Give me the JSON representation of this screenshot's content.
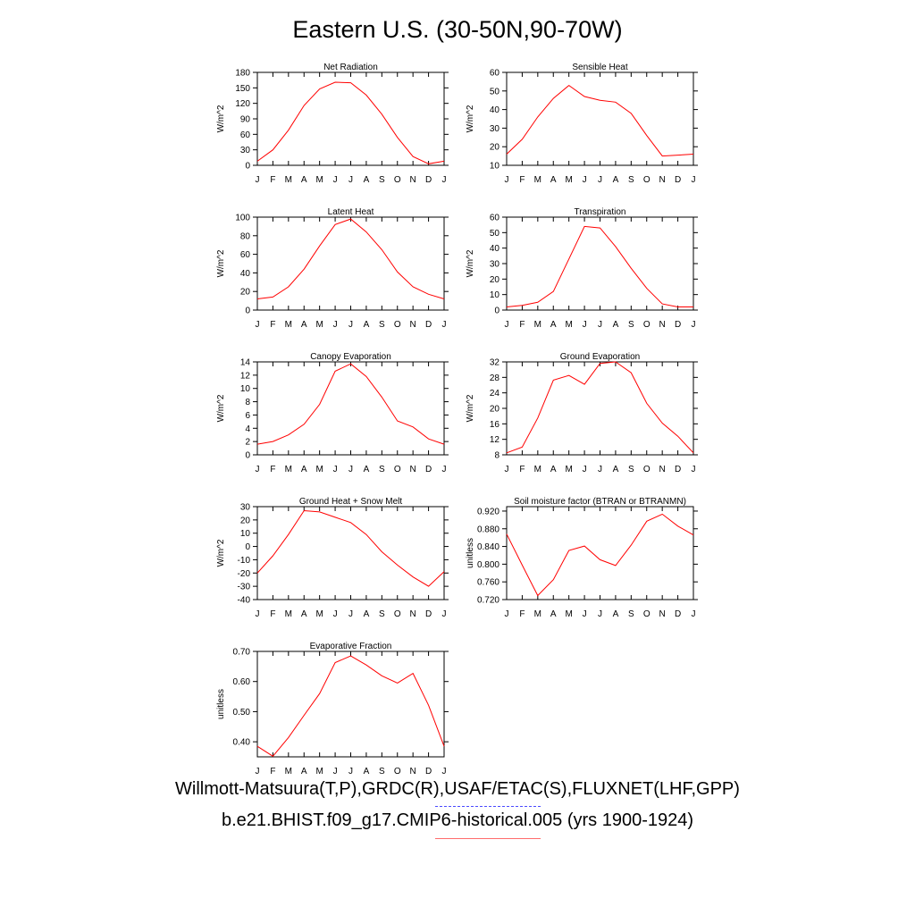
{
  "title": "Eastern U.S. (30-50N,90-70W)",
  "colors": {
    "series": "#ff0000",
    "obs": "#4a4aff",
    "model": "#ff6b6b"
  },
  "legend": {
    "obs_label": "Willmott-Matsuura(T,P),GRDC(R),USAF/ETAC(S),FLUXNET(LHF,GPP)",
    "model_label": "b.e21.BHIST.f09_g17.CMIP6-historical.005 (yrs 1900-1924)"
  },
  "months": [
    "J",
    "F",
    "M",
    "A",
    "M",
    "J",
    "J",
    "A",
    "S",
    "O",
    "N",
    "D",
    "J"
  ],
  "chart_data": [
    {
      "type": "line",
      "title": "Net Radiation",
      "ylabel": "W/m^2",
      "ylim": [
        0,
        180
      ],
      "yticks": [
        "0",
        "30",
        "60",
        "90",
        "120",
        "150",
        "180"
      ],
      "values": [
        8,
        30,
        68,
        116,
        148,
        161,
        160,
        136,
        99,
        54,
        17,
        3,
        8
      ]
    },
    {
      "type": "line",
      "title": "Sensible Heat",
      "ylabel": "W/m^2",
      "ylim": [
        10,
        60
      ],
      "yticks": [
        "10",
        "20",
        "30",
        "40",
        "50",
        "60"
      ],
      "values": [
        16,
        24,
        36,
        46,
        53,
        47,
        45,
        44,
        38,
        26,
        15,
        15.5,
        16
      ]
    },
    {
      "type": "line",
      "title": "Latent Heat",
      "ylabel": "W/m^2",
      "ylim": [
        0,
        100
      ],
      "yticks": [
        "0",
        "20",
        "40",
        "60",
        "80",
        "100"
      ],
      "values": [
        12,
        14,
        25,
        44,
        69,
        92,
        98,
        84,
        65,
        41,
        25,
        17,
        12
      ]
    },
    {
      "type": "line",
      "title": "Transpiration",
      "ylabel": "W/m^2",
      "ylim": [
        0,
        60
      ],
      "yticks": [
        "0",
        "10",
        "20",
        "30",
        "40",
        "50",
        "60"
      ],
      "values": [
        2,
        3,
        5,
        12,
        33,
        54,
        53,
        41,
        27,
        14,
        4,
        2,
        2
      ]
    },
    {
      "type": "line",
      "title": "Canopy Evaporation",
      "ylabel": "W/m^2",
      "ylim": [
        0,
        14
      ],
      "yticks": [
        "0",
        "2",
        "4",
        "6",
        "8",
        "10",
        "12",
        "14"
      ],
      "values": [
        1.6,
        2.0,
        3.0,
        4.6,
        7.6,
        12.6,
        13.7,
        11.8,
        8.7,
        5.1,
        4.2,
        2.4,
        1.6
      ]
    },
    {
      "type": "line",
      "title": "Ground Evaporation",
      "ylabel": "W/m^2",
      "ylim": [
        8,
        32
      ],
      "yticks": [
        "8",
        "12",
        "16",
        "20",
        "24",
        "28",
        "32"
      ],
      "values": [
        8.5,
        10,
        17.5,
        27.3,
        28.5,
        26.2,
        31.6,
        32,
        29.2,
        21.3,
        16.2,
        12.8,
        8.5
      ]
    },
    {
      "type": "line",
      "title": "Ground Heat + Snow Melt",
      "ylabel": "W/m^2",
      "ylim": [
        -40,
        30
      ],
      "yticks": [
        "-40",
        "-30",
        "-20",
        "-10",
        "0",
        "10",
        "20",
        "30"
      ],
      "values": [
        -20,
        -7,
        9,
        27,
        26,
        22,
        18,
        9,
        -4,
        -14,
        -23,
        -30,
        -19
      ]
    },
    {
      "type": "line",
      "title": "Soil moisture factor (BTRAN or BTRANMN)",
      "ylabel": "unitless",
      "ylim": [
        0.72,
        0.93
      ],
      "yticks": [
        "0.720",
        "0.760",
        "0.800",
        "0.840",
        "0.880",
        "0.920"
      ],
      "values": [
        0.868,
        0.798,
        0.729,
        0.765,
        0.831,
        0.841,
        0.81,
        0.797,
        0.843,
        0.897,
        0.913,
        0.886,
        0.866
      ]
    },
    {
      "type": "line",
      "title": "Evaporative Fraction",
      "ylabel": "unitless",
      "ylim": [
        0.35,
        0.7
      ],
      "yticks": [
        "0.40",
        "0.50",
        "0.60",
        "0.70"
      ],
      "values": [
        0.385,
        0.352,
        0.414,
        0.488,
        0.56,
        0.663,
        0.685,
        0.655,
        0.619,
        0.595,
        0.627,
        0.521,
        0.385
      ]
    }
  ]
}
